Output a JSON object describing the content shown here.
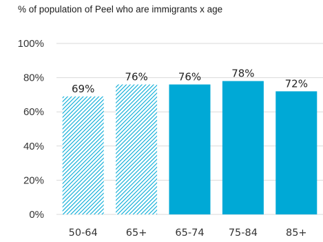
{
  "chart_data": {
    "type": "bar",
    "title": "% of population of Peel who are immigrants x age",
    "xlabel": "",
    "ylabel": "",
    "categories": [
      "50-64",
      "65+",
      "65-74",
      "75-84",
      "85+"
    ],
    "values": [
      69,
      76,
      76,
      78,
      72
    ],
    "value_labels": [
      "69%",
      "76%",
      "76%",
      "78%",
      "72%"
    ],
    "bar_style": [
      "hatched",
      "hatched",
      "solid",
      "solid",
      "solid"
    ],
    "ylim": [
      0,
      100
    ],
    "yticks": [
      0,
      20,
      40,
      60,
      80,
      100
    ],
    "ytick_labels": [
      "0%",
      "20%",
      "40%",
      "60%",
      "80%",
      "100%"
    ],
    "grid": true,
    "legend": false,
    "colors": {
      "bar": "#00a9d6",
      "grid": "#d9d9d9"
    }
  }
}
